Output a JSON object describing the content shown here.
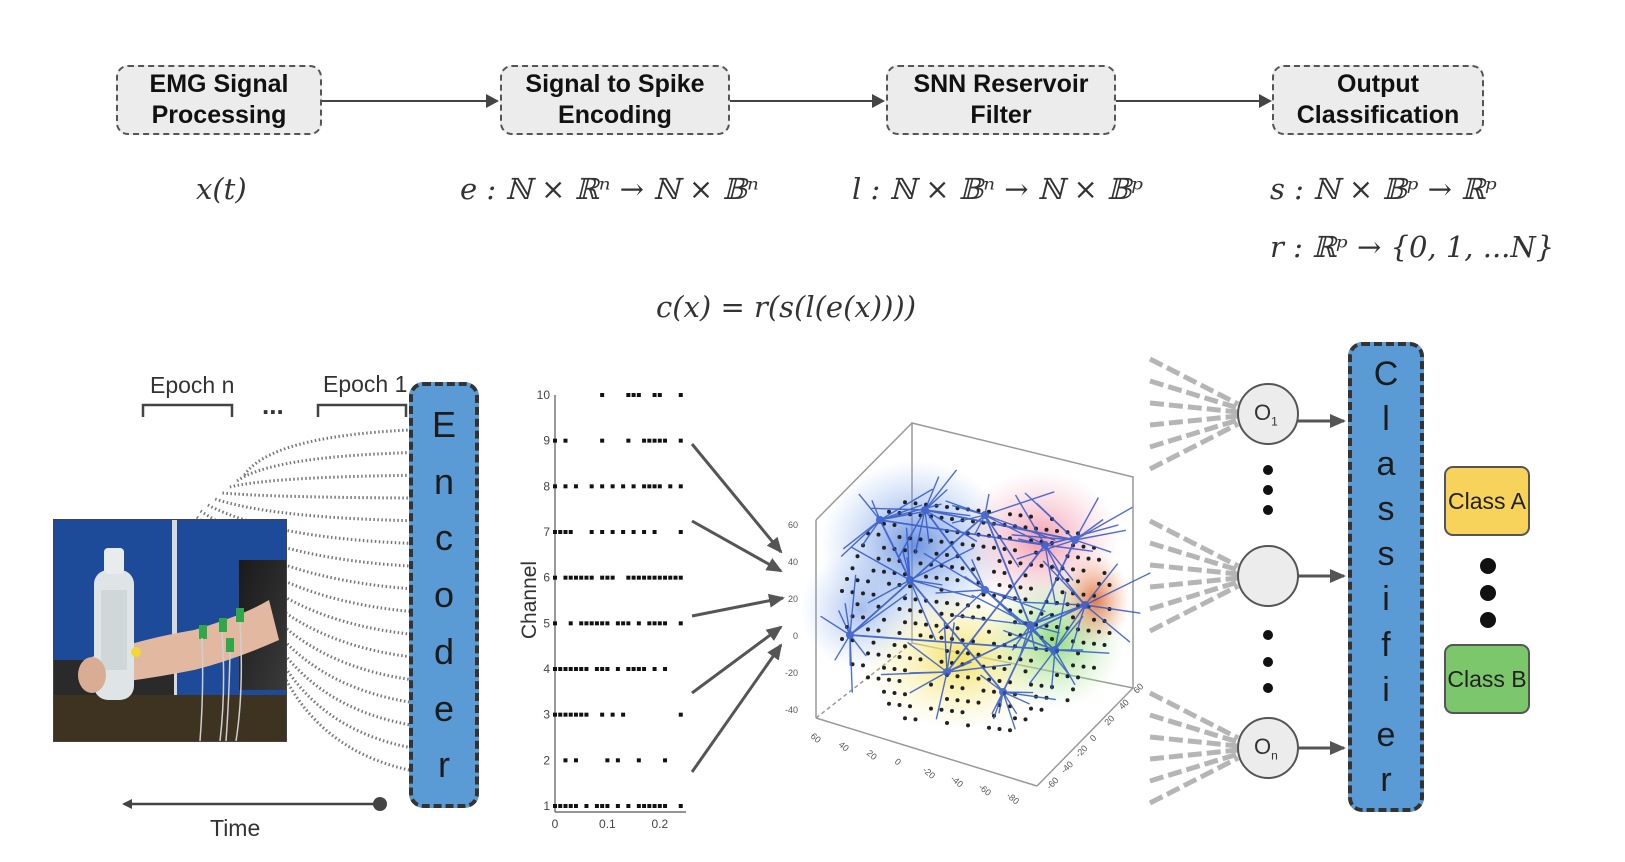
{
  "pipeline": {
    "stages": [
      {
        "line1": "EMG Signal",
        "line2": "Processing"
      },
      {
        "line1": "Signal to Spike",
        "line2": "Encoding"
      },
      {
        "line1": "SNN Reservoir",
        "line2": "Filter"
      },
      {
        "line1": "Output",
        "line2": "Classification"
      }
    ],
    "formulas": {
      "signal": "x(t)",
      "encoder": "e : ℕ × ℝⁿ → ℕ × 𝔹ⁿ",
      "reservoir": "l : ℕ × 𝔹ⁿ → ℕ × 𝔹ᵖ",
      "readout": "s : ℕ × 𝔹ᵖ → ℝᵖ",
      "classifier": "r : ℝᵖ → {0, 1, ...N}",
      "composite": "c(x) = r(s(l(e(x))))"
    }
  },
  "figure": {
    "epoch_n": "Epoch n",
    "ellipsis": "...",
    "epoch_1": "Epoch 1",
    "time_label": "Time",
    "encoder_letters": [
      "E",
      "n",
      "c",
      "o",
      "d",
      "e",
      "r"
    ],
    "classifier_letters": [
      "C",
      "l",
      "a",
      "s",
      "s",
      "i",
      "f",
      "i",
      "e",
      "r"
    ],
    "output_nodes": [
      {
        "main": "O",
        "sub": "1"
      },
      {
        "main": "",
        "sub": ""
      },
      {
        "main": "O",
        "sub": "n"
      }
    ],
    "class_a": "Class A",
    "class_b": "Class B",
    "colors": {
      "bar_blue": "#5b9bd5",
      "class_a": "#f7d35c",
      "class_b": "#7cc66b",
      "node_fill": "#ececec"
    }
  },
  "raster": {
    "ylabel": "Channel",
    "y_ticks": [
      "1",
      "2",
      "3",
      "4",
      "5",
      "6",
      "7",
      "8",
      "9",
      "10"
    ],
    "x_ticks": [
      "0",
      "0.1",
      "0.2"
    ],
    "xlim": [
      0,
      0.25
    ],
    "ylim": [
      1,
      10
    ],
    "spikes": [
      {
        "channel": 10,
        "times": [
          0.09,
          0.14,
          0.15,
          0.16,
          0.19,
          0.2,
          0.24
        ]
      },
      {
        "channel": 9,
        "times": [
          0.0,
          0.02,
          0.09,
          0.14,
          0.17,
          0.18,
          0.19,
          0.2,
          0.21,
          0.24
        ]
      },
      {
        "channel": 8,
        "times": [
          0.0,
          0.02,
          0.04,
          0.07,
          0.09,
          0.11,
          0.13,
          0.15,
          0.17,
          0.18,
          0.19,
          0.2,
          0.22,
          0.24
        ]
      },
      {
        "channel": 7,
        "times": [
          0.0,
          0.01,
          0.02,
          0.03,
          0.07,
          0.09,
          0.11,
          0.13,
          0.15,
          0.17,
          0.19,
          0.24
        ]
      },
      {
        "channel": 6,
        "times": [
          0.0,
          0.02,
          0.03,
          0.04,
          0.05,
          0.06,
          0.07,
          0.09,
          0.1,
          0.11,
          0.14,
          0.15,
          0.16,
          0.17,
          0.18,
          0.19,
          0.2,
          0.21,
          0.22,
          0.23,
          0.24
        ]
      },
      {
        "channel": 5,
        "times": [
          0.0,
          0.03,
          0.05,
          0.06,
          0.07,
          0.08,
          0.09,
          0.1,
          0.12,
          0.13,
          0.14,
          0.16,
          0.18,
          0.19,
          0.2,
          0.21,
          0.24
        ]
      },
      {
        "channel": 4,
        "times": [
          0.0,
          0.01,
          0.02,
          0.03,
          0.04,
          0.05,
          0.06,
          0.08,
          0.09,
          0.1,
          0.12,
          0.14,
          0.15,
          0.16,
          0.17,
          0.19,
          0.21
        ]
      },
      {
        "channel": 3,
        "times": [
          0.0,
          0.01,
          0.02,
          0.03,
          0.04,
          0.05,
          0.06,
          0.09,
          0.11,
          0.13,
          0.24
        ]
      },
      {
        "channel": 2,
        "times": [
          0.02,
          0.04,
          0.1,
          0.12,
          0.16,
          0.21
        ]
      },
      {
        "channel": 1,
        "times": [
          0.0,
          0.01,
          0.02,
          0.03,
          0.04,
          0.06,
          0.08,
          0.09,
          0.1,
          0.12,
          0.14,
          0.16,
          0.17,
          0.18,
          0.19,
          0.2,
          0.21,
          0.24
        ]
      }
    ]
  },
  "cube_axes": {
    "left_ticks": [
      "60",
      "40",
      "20",
      "0",
      "-20",
      "-40"
    ],
    "bottom_left_ticks": [
      "60",
      "40",
      "20",
      "0",
      "-20",
      "-40",
      "-60",
      "-80"
    ],
    "bottom_right_ticks": [
      "-60",
      "-40",
      "-20",
      "0",
      "20",
      "40",
      "60"
    ]
  }
}
